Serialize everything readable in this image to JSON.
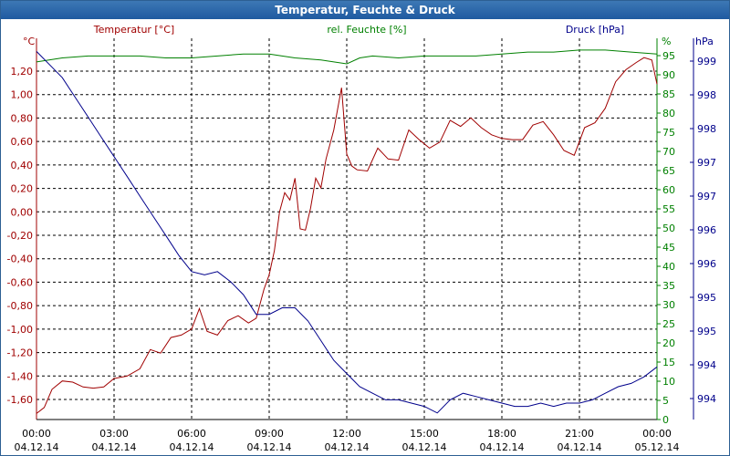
{
  "window": {
    "title": "Temperatur, Feuchte & Druck"
  },
  "colors": {
    "temperature": "#a00000",
    "humidity": "#008000",
    "pressure": "#00008b",
    "grid": "#000000",
    "title_bg": "#2d6aab"
  },
  "chart_data": {
    "type": "line",
    "title": "Temperatur, Feuchte & Druck",
    "series_labels": {
      "temperature": "Temperatur [°C]",
      "humidity": "rel. Feuchte [%]",
      "pressure": "Druck [hPa]"
    },
    "axis_units": {
      "left": "°C",
      "right1": "%",
      "right2": "hPa"
    },
    "xlim": [
      0,
      24
    ],
    "x_ticks": [
      {
        "time": "00:00",
        "date": "04.12.14"
      },
      {
        "time": "03:00",
        "date": "04.12.14"
      },
      {
        "time": "06:00",
        "date": "04.12.14"
      },
      {
        "time": "09:00",
        "date": "04.12.14"
      },
      {
        "time": "12:00",
        "date": "04.12.14"
      },
      {
        "time": "15:00",
        "date": "04.12.14"
      },
      {
        "time": "18:00",
        "date": "04.12.14"
      },
      {
        "time": "21:00",
        "date": "04.12.14"
      },
      {
        "time": "00:00",
        "date": "05.12.14"
      }
    ],
    "temp_ylim": [
      -1.7,
      1.46
    ],
    "temp_ticks": [
      "1,20",
      "1,00",
      "0,80",
      "0,60",
      "0,40",
      "0,20",
      "0,00",
      "-0,20",
      "-0,40",
      "-0,60",
      "-0,80",
      "-1,00",
      "-1,20",
      "-1,40",
      "-1,60"
    ],
    "hum_ylim": [
      0,
      97
    ],
    "hum_ticks": [
      "95",
      "90",
      "85",
      "80",
      "75",
      "70",
      "65",
      "60",
      "55",
      "50",
      "45",
      "40",
      "35",
      "30",
      "25",
      "20",
      "15",
      "10",
      "5",
      "0"
    ],
    "press_ylim": [
      993.7,
      999.5
    ],
    "press_ticks": [
      "999",
      "998",
      "998",
      "997",
      "997",
      "996",
      "996",
      "995",
      "995",
      "994",
      "994"
    ],
    "series": [
      {
        "name": "Temperatur [°C]",
        "axis": "temperature",
        "x": [
          0,
          0.3,
          0.6,
          1.0,
          1.4,
          1.8,
          2.2,
          2.6,
          3.0,
          3.5,
          4.0,
          4.4,
          4.8,
          5.2,
          5.6,
          6.0,
          6.3,
          6.6,
          7.0,
          7.4,
          7.8,
          8.2,
          8.5,
          8.8,
          9.0,
          9.2,
          9.4,
          9.6,
          9.8,
          10.0,
          10.2,
          10.4,
          10.6,
          10.8,
          11.0,
          11.2,
          11.5,
          11.8,
          12.0,
          12.2,
          12.4,
          12.8,
          13.2,
          13.6,
          14.0,
          14.4,
          14.8,
          15.2,
          15.6,
          16.0,
          16.4,
          16.8,
          17.2,
          17.6,
          18.0,
          18.4,
          18.8,
          19.2,
          19.6,
          20.0,
          20.4,
          20.8,
          21.2,
          21.6,
          22.0,
          22.4,
          22.8,
          23.2,
          23.5,
          23.8,
          24.0
        ],
        "values": [
          -1.65,
          -1.6,
          -1.45,
          -1.38,
          -1.39,
          -1.43,
          -1.44,
          -1.43,
          -1.36,
          -1.34,
          -1.28,
          -1.12,
          -1.15,
          -1.02,
          -1.0,
          -0.95,
          -0.78,
          -0.97,
          -1.0,
          -0.88,
          -0.84,
          -0.9,
          -0.86,
          -0.62,
          -0.5,
          -0.3,
          0.02,
          0.18,
          0.12,
          0.3,
          -0.12,
          -0.13,
          0.05,
          0.3,
          0.22,
          0.46,
          0.7,
          1.05,
          0.5,
          0.4,
          0.37,
          0.36,
          0.55,
          0.46,
          0.45,
          0.7,
          0.62,
          0.55,
          0.6,
          0.78,
          0.73,
          0.8,
          0.72,
          0.66,
          0.63,
          0.62,
          0.62,
          0.74,
          0.77,
          0.66,
          0.53,
          0.49,
          0.72,
          0.76,
          0.88,
          1.1,
          1.2,
          1.26,
          1.3,
          1.28,
          1.08
        ]
      },
      {
        "name": "rel. Feuchte [%]",
        "axis": "humidity",
        "x": [
          0,
          1,
          2,
          3,
          4,
          5,
          6,
          7,
          8,
          9,
          10,
          11,
          11.5,
          12,
          12.5,
          13,
          14,
          15,
          16,
          17,
          18,
          19,
          20,
          21,
          22,
          23,
          24
        ],
        "values": [
          91,
          92,
          92.5,
          92.5,
          92.5,
          92,
          92,
          92.5,
          93,
          93,
          92,
          91.5,
          91,
          90.5,
          92,
          92.5,
          92,
          92.5,
          92.5,
          92.5,
          93,
          93.5,
          93.5,
          94,
          94,
          93.5,
          93
        ]
      },
      {
        "name": "Druck [hPa]",
        "axis": "pressure",
        "x": [
          0,
          0.5,
          1.0,
          1.5,
          2.0,
          2.5,
          3.0,
          3.5,
          4.0,
          4.5,
          5.0,
          5.5,
          6.0,
          6.5,
          7.0,
          7.5,
          8.0,
          8.5,
          9.0,
          9.5,
          10.0,
          10.5,
          11.0,
          11.5,
          12.0,
          12.5,
          13.0,
          13.5,
          14.0,
          14.5,
          15.0,
          15.5,
          16.0,
          16.5,
          17.0,
          17.5,
          18.0,
          18.5,
          19.0,
          19.5,
          20.0,
          20.5,
          21.0,
          21.5,
          22.0,
          22.5,
          23.0,
          23.5,
          24.0
        ],
        "values": [
          999.3,
          999.1,
          998.9,
          998.6,
          998.3,
          998.0,
          997.7,
          997.4,
          997.1,
          996.8,
          996.5,
          996.2,
          995.95,
          995.9,
          995.95,
          995.8,
          995.6,
          995.3,
          995.3,
          995.4,
          995.4,
          995.2,
          994.9,
          994.6,
          994.4,
          994.2,
          994.1,
          994.0,
          994.0,
          993.95,
          993.9,
          993.8,
          994.0,
          994.1,
          994.05,
          994.0,
          993.95,
          993.9,
          993.9,
          993.95,
          993.9,
          993.95,
          993.95,
          994.0,
          994.1,
          994.2,
          994.25,
          994.35,
          994.5
        ]
      }
    ]
  }
}
